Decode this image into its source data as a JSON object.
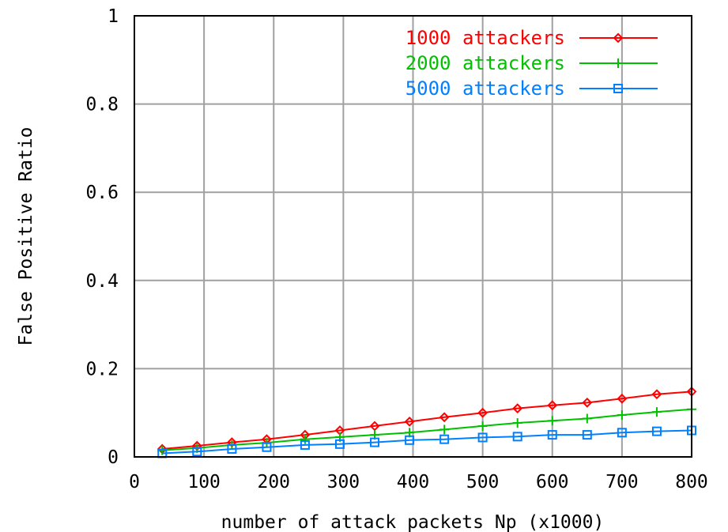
{
  "chart_data": {
    "type": "line",
    "title": "",
    "xlabel": "number of attack packets Np (x1000)",
    "ylabel": "False Positive Ratio",
    "xlim": [
      0,
      800
    ],
    "ylim": [
      0,
      1
    ],
    "xticks": [
      "0",
      "100",
      "200",
      "300",
      "400",
      "500",
      "600",
      "700",
      "800"
    ],
    "yticks": [
      "0",
      "0.2",
      "0.4",
      "0.6",
      "0.8",
      "1"
    ],
    "grid": true,
    "legend_position": "top-right",
    "x": [
      40,
      90,
      140,
      190,
      245,
      295,
      345,
      395,
      445,
      500,
      550,
      600,
      650,
      700,
      750,
      800
    ],
    "series": [
      {
        "name": "1000 attackers",
        "color": "#ff0000",
        "marker": "diamond",
        "values": [
          0.018,
          0.025,
          0.033,
          0.04,
          0.05,
          0.06,
          0.07,
          0.08,
          0.09,
          0.1,
          0.11,
          0.117,
          0.123,
          0.132,
          0.142,
          0.148
        ]
      },
      {
        "name": "2000 attackers",
        "color": "#00c000",
        "marker": "plus",
        "values": [
          0.015,
          0.02,
          0.027,
          0.032,
          0.04,
          0.045,
          0.05,
          0.055,
          0.062,
          0.07,
          0.077,
          0.082,
          0.087,
          0.095,
          0.102,
          0.108
        ]
      },
      {
        "name": "5000 attackers",
        "color": "#0080ff",
        "marker": "square",
        "values": [
          0.008,
          0.012,
          0.018,
          0.022,
          0.027,
          0.029,
          0.033,
          0.038,
          0.04,
          0.044,
          0.046,
          0.05,
          0.05,
          0.055,
          0.058,
          0.06
        ]
      }
    ]
  }
}
